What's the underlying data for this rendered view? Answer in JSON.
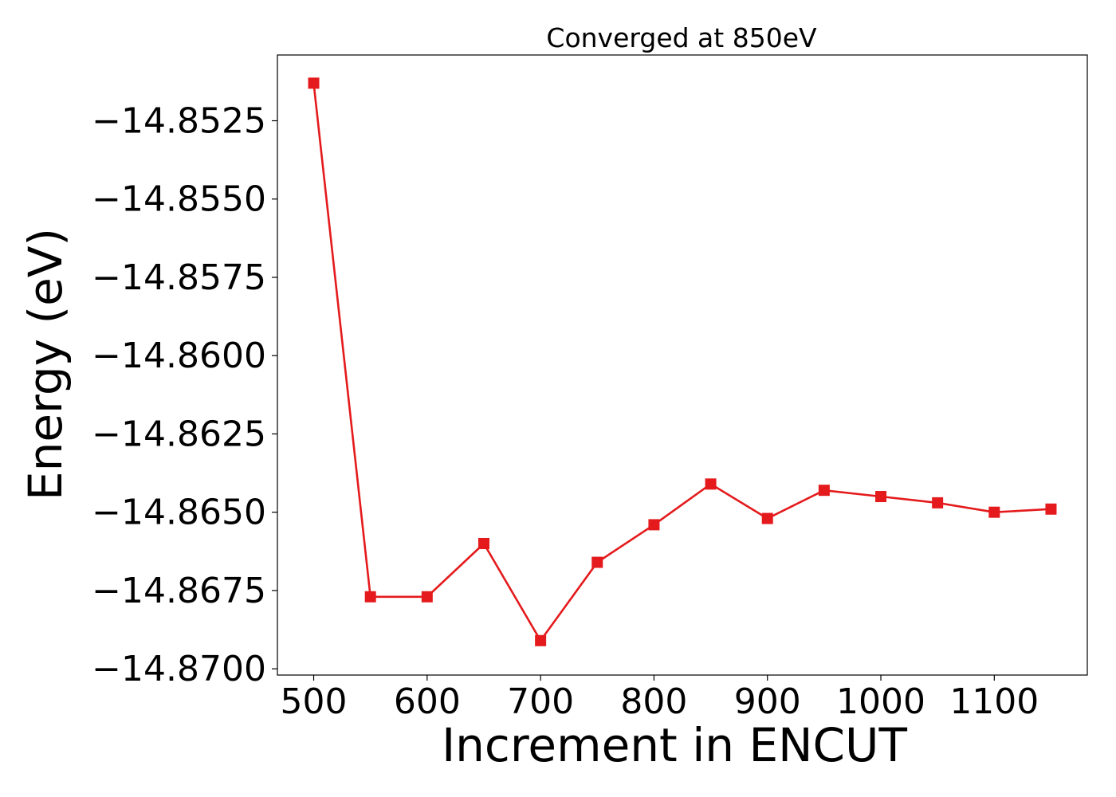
{
  "chart_data": {
    "type": "line",
    "title": "Converged at 850eV",
    "xlabel": "Increment in ENCUT",
    "ylabel": "Energy (eV)",
    "xlim": [
      468,
      1182
    ],
    "ylim": [
      -14.8702,
      -14.8504
    ],
    "x_ticks": [
      500,
      600,
      700,
      800,
      900,
      1000,
      1100
    ],
    "x_tick_labels": [
      "500",
      "600",
      "700",
      "800",
      "900",
      "1000",
      "1100"
    ],
    "y_ticks": [
      -14.8525,
      -14.855,
      -14.8575,
      -14.86,
      -14.8625,
      -14.865,
      -14.8675,
      -14.87
    ],
    "y_tick_labels": [
      "−14.8525",
      "−14.8550",
      "−14.8575",
      "−14.8600",
      "−14.8625",
      "−14.8650",
      "−14.8675",
      "−14.8700"
    ],
    "grid": false,
    "series": [
      {
        "color": "#e41a1c",
        "marker": "square",
        "x": [
          500,
          550,
          600,
          650,
          700,
          750,
          800,
          850,
          900,
          950,
          1000,
          1050,
          1100,
          1150
        ],
        "y": [
          -14.8513,
          -14.8677,
          -14.8677,
          -14.866,
          -14.8691,
          -14.8666,
          -14.8654,
          -14.8641,
          -14.8652,
          -14.8643,
          -14.8645,
          -14.8647,
          -14.865,
          -14.8649
        ]
      }
    ]
  }
}
